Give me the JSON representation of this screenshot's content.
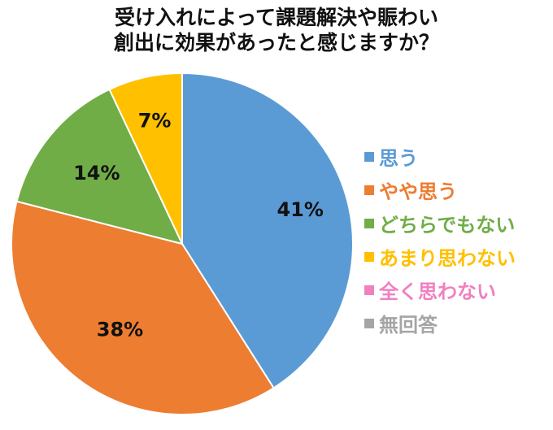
{
  "chart_data": {
    "type": "pie",
    "title_lines": [
      "受け入れによって課題解決や賑わい",
      "創出に効果があったと感じますか？"
    ],
    "legend_position": "right",
    "slices": [
      {
        "label": "思う",
        "value": 41,
        "display": "41%",
        "color": "#5B9BD5"
      },
      {
        "label": "やや思う",
        "value": 38,
        "display": "38%",
        "color": "#ED7D31"
      },
      {
        "label": "どちらでもない",
        "value": 14,
        "display": "14%",
        "color": "#70AD47"
      },
      {
        "label": "あまり思わない",
        "value": 7,
        "display": "7%",
        "color": "#FFC000"
      },
      {
        "label": "全く思わない",
        "value": 0,
        "display": "",
        "color": "#F080C0"
      },
      {
        "label": "無回答",
        "value": 0,
        "display": "",
        "color": "#A5A5A5"
      }
    ]
  }
}
